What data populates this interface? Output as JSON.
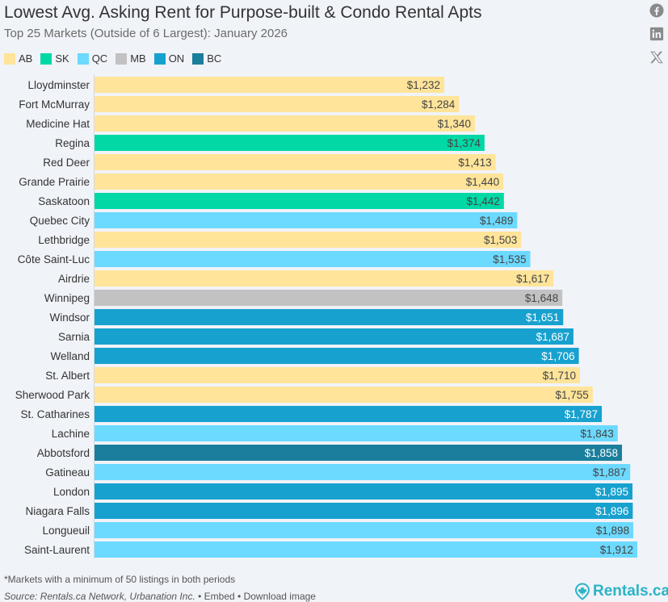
{
  "header": {
    "title": "Lowest Avg. Asking Rent for Purpose-built & Condo Rental Apts",
    "subtitle": "Top 25 Markets (Outside of 6 Largest): January 2026"
  },
  "social": [
    {
      "name": "facebook-icon",
      "label": "Facebook"
    },
    {
      "name": "linkedin-icon",
      "label": "LinkedIn"
    },
    {
      "name": "x-icon",
      "label": "X"
    }
  ],
  "legend": [
    {
      "label": "AB",
      "color": "#ffe49a"
    },
    {
      "label": "SK",
      "color": "#00d8a6"
    },
    {
      "label": "QC",
      "color": "#6cd9ff"
    },
    {
      "label": "MB",
      "color": "#c2c2c2"
    },
    {
      "label": "ON",
      "color": "#17a1cf"
    },
    {
      "label": "BC",
      "color": "#1b7e9c"
    }
  ],
  "chart_data": {
    "type": "bar",
    "orientation": "horizontal",
    "title": "Lowest Avg. Asking Rent for Purpose-built & Condo Rental Apts",
    "subtitle": "Top 25 Markets (Outside of 6 Largest): January 2026",
    "xlabel": "",
    "ylabel": "",
    "xlim": [
      0,
      1912
    ],
    "grid": false,
    "legend_position": "top-left",
    "value_prefix": "$",
    "categories": [
      "Lloydminster",
      "Fort McMurray",
      "Medicine Hat",
      "Regina",
      "Red Deer",
      "Grande Prairie",
      "Saskatoon",
      "Quebec City",
      "Lethbridge",
      "Côte Saint-Luc",
      "Airdrie",
      "Winnipeg",
      "Windsor",
      "Sarnia",
      "Welland",
      "St. Albert",
      "Sherwood Park",
      "St. Catharines",
      "Lachine",
      "Abbotsford",
      "Gatineau",
      "London",
      "Niagara Falls",
      "Longueuil",
      "Saint-Laurent"
    ],
    "values": [
      1232,
      1284,
      1340,
      1374,
      1413,
      1440,
      1442,
      1489,
      1503,
      1535,
      1617,
      1648,
      1651,
      1687,
      1706,
      1710,
      1755,
      1787,
      1843,
      1858,
      1887,
      1895,
      1896,
      1898,
      1912
    ],
    "labels": [
      "$1,232",
      "$1,284",
      "$1,340",
      "$1,374",
      "$1,413",
      "$1,440",
      "$1,442",
      "$1,489",
      "$1,503",
      "$1,535",
      "$1,617",
      "$1,648",
      "$1,651",
      "$1,687",
      "$1,706",
      "$1,710",
      "$1,755",
      "$1,787",
      "$1,843",
      "$1,858",
      "$1,887",
      "$1,895",
      "$1,896",
      "$1,898",
      "$1,912"
    ],
    "province": [
      "AB",
      "AB",
      "AB",
      "SK",
      "AB",
      "AB",
      "SK",
      "QC",
      "AB",
      "QC",
      "AB",
      "MB",
      "ON",
      "ON",
      "ON",
      "AB",
      "AB",
      "ON",
      "QC",
      "BC",
      "QC",
      "ON",
      "ON",
      "QC",
      "QC"
    ],
    "label_colors": {
      "AB": "#444444",
      "SK": "#444444",
      "QC": "#444444",
      "MB": "#444444",
      "ON": "#ffffff",
      "BC": "#ffffff"
    }
  },
  "footer": {
    "footnote": "*Markets with a minimum of 50 listings in both periods",
    "source": "Source: Rentals.ca Network, Urbanation Inc.",
    "embed_label": "Embed",
    "download_label": "Download image",
    "bullet": "•",
    "brand": "Rentals.ca"
  }
}
